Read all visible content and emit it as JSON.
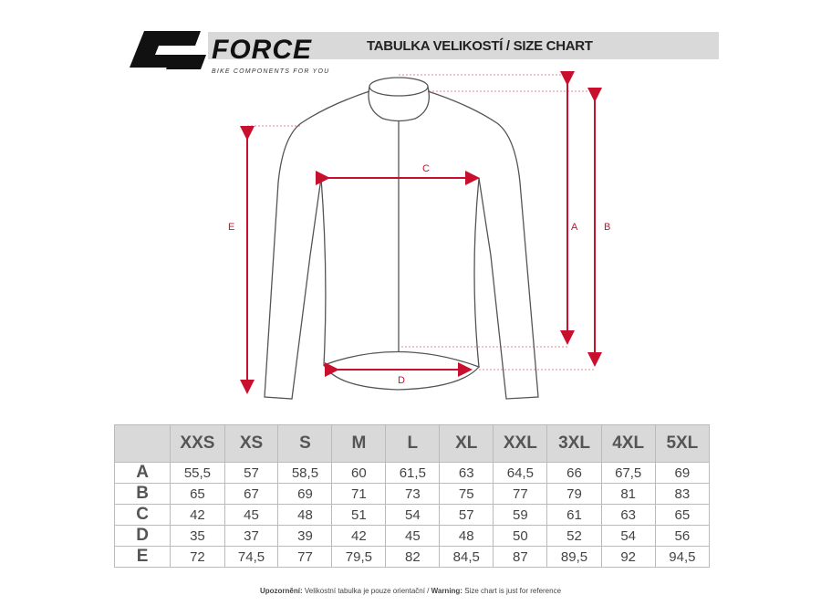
{
  "brand": {
    "name": "FORCE",
    "tagline": "BIKE COMPONENTS FOR YOU"
  },
  "title": "TABULKA VELIKOSTÍ / SIZE CHART",
  "diagram_labels": {
    "a": "A",
    "b": "B",
    "c": "C",
    "d": "D",
    "e": "E"
  },
  "accent_color": "#c8102e",
  "table": {
    "sizes": [
      "XXS",
      "XS",
      "S",
      "M",
      "L",
      "XL",
      "XXL",
      "3XL",
      "4XL",
      "5XL"
    ],
    "rows": [
      {
        "label": "A",
        "values": [
          "55,5",
          "57",
          "58,5",
          "60",
          "61,5",
          "63",
          "64,5",
          "66",
          "67,5",
          "69"
        ]
      },
      {
        "label": "B",
        "values": [
          "65",
          "67",
          "69",
          "71",
          "73",
          "75",
          "77",
          "79",
          "81",
          "83"
        ]
      },
      {
        "label": "C",
        "values": [
          "42",
          "45",
          "48",
          "51",
          "54",
          "57",
          "59",
          "61",
          "63",
          "65"
        ]
      },
      {
        "label": "D",
        "values": [
          "35",
          "37",
          "39",
          "42",
          "45",
          "48",
          "50",
          "52",
          "54",
          "56"
        ]
      },
      {
        "label": "E",
        "values": [
          "72",
          "74,5",
          "77",
          "79,5",
          "82",
          "84,5",
          "87",
          "89,5",
          "92",
          "94,5"
        ]
      }
    ]
  },
  "note": {
    "cz_label": "Upozornění:",
    "cz_text": " Velikostní tabulka je pouze orientační / ",
    "en_label": "Warning:",
    "en_text": " Size chart is just for reference"
  }
}
